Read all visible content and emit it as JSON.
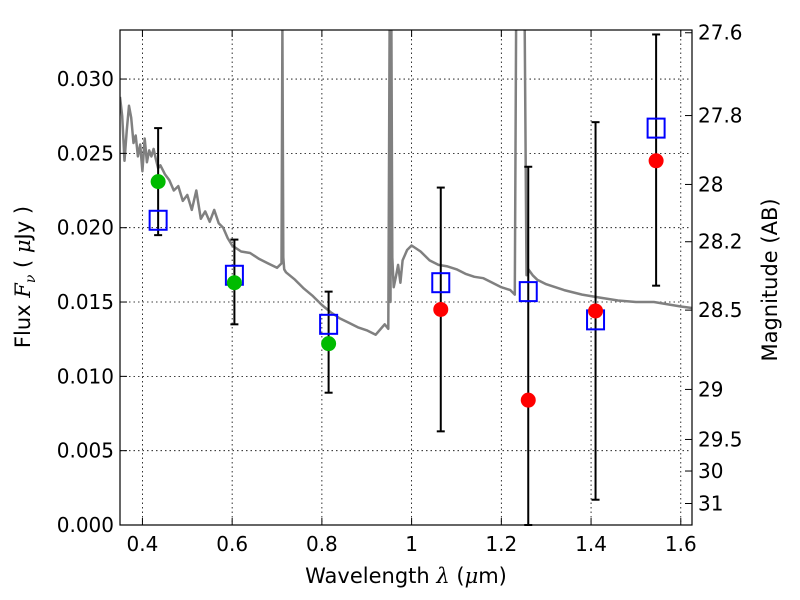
{
  "chart_data": {
    "type": "scatter",
    "title": "",
    "xlabel": {
      "prefix": "Wavelength  ",
      "symbol": "λ",
      "suffix": " (",
      "mu": "μ",
      "unit": "m)"
    },
    "ylabel": {
      "prefix": "Flux  ",
      "symbol": "F",
      "sub": "ν",
      "mid": "  ( ",
      "mu": "μ",
      "unit": "Jy )"
    },
    "ylabel_right": "Magnitude (AB)",
    "xlim": [
      0.35,
      1.625
    ],
    "ylim": [
      0.0,
      0.0333
    ],
    "grid": true,
    "x_ticks": [
      {
        "v": 0.4,
        "label": "0.4"
      },
      {
        "v": 0.6,
        "label": "0.6"
      },
      {
        "v": 0.8,
        "label": "0.8"
      },
      {
        "v": 1.0,
        "label": "1"
      },
      {
        "v": 1.2,
        "label": "1.2"
      },
      {
        "v": 1.4,
        "label": "1.4"
      },
      {
        "v": 1.6,
        "label": "1.6"
      }
    ],
    "y_ticks": [
      {
        "v": 0.0,
        "label": "0.000"
      },
      {
        "v": 0.005,
        "label": "0.005"
      },
      {
        "v": 0.01,
        "label": "0.010"
      },
      {
        "v": 0.015,
        "label": "0.015"
      },
      {
        "v": 0.02,
        "label": "0.020"
      },
      {
        "v": 0.025,
        "label": "0.025"
      },
      {
        "v": 0.03,
        "label": "0.030"
      }
    ],
    "right_ticks": [
      {
        "mag": 27.6,
        "label": "27.6"
      },
      {
        "mag": 27.8,
        "label": "27.8"
      },
      {
        "mag": 28.0,
        "label": "28"
      },
      {
        "mag": 28.2,
        "label": "28.2"
      },
      {
        "mag": 28.5,
        "label": "28.5"
      },
      {
        "mag": 29.0,
        "label": "29"
      },
      {
        "mag": 29.5,
        "label": "29.5"
      },
      {
        "mag": 30.0,
        "label": "30"
      },
      {
        "mag": 31.0,
        "label": "31"
      }
    ],
    "model_spectrum": {
      "color": "#808080",
      "x": [
        0.35,
        0.355,
        0.36,
        0.365,
        0.37,
        0.375,
        0.38,
        0.385,
        0.39,
        0.395,
        0.4,
        0.405,
        0.41,
        0.415,
        0.42,
        0.425,
        0.43,
        0.435,
        0.44,
        0.45,
        0.46,
        0.47,
        0.48,
        0.49,
        0.5,
        0.51,
        0.52,
        0.53,
        0.54,
        0.55,
        0.56,
        0.57,
        0.58,
        0.59,
        0.6,
        0.62,
        0.64,
        0.66,
        0.68,
        0.7,
        0.71,
        0.712,
        0.714,
        0.716,
        0.72,
        0.74,
        0.76,
        0.78,
        0.8,
        0.82,
        0.84,
        0.86,
        0.88,
        0.9,
        0.92,
        0.94,
        0.948,
        0.951,
        0.953,
        0.955,
        0.957,
        0.96,
        0.965,
        0.97,
        0.975,
        0.98,
        0.99,
        1.0,
        1.02,
        1.04,
        1.06,
        1.08,
        1.1,
        1.12,
        1.14,
        1.16,
        1.18,
        1.2,
        1.22,
        1.23,
        1.233,
        1.236,
        1.24,
        1.248,
        1.252,
        1.256,
        1.26,
        1.27,
        1.28,
        1.3,
        1.34,
        1.38,
        1.42,
        1.46,
        1.5,
        1.54,
        1.58,
        1.6,
        1.625
      ],
      "y": [
        0.0288,
        0.0275,
        0.0245,
        0.0265,
        0.0282,
        0.0274,
        0.0257,
        0.0262,
        0.0248,
        0.0256,
        0.0238,
        0.026,
        0.0244,
        0.0252,
        0.0248,
        0.0253,
        0.0246,
        0.024,
        0.0242,
        0.0236,
        0.0232,
        0.0225,
        0.0228,
        0.0218,
        0.0222,
        0.0212,
        0.0225,
        0.0206,
        0.0211,
        0.0204,
        0.0212,
        0.0203,
        0.02,
        0.0193,
        0.0188,
        0.0184,
        0.0183,
        0.0179,
        0.0176,
        0.0173,
        0.0176,
        0.0335,
        0.018,
        0.0172,
        0.017,
        0.0165,
        0.0159,
        0.0154,
        0.0148,
        0.0143,
        0.0139,
        0.0136,
        0.0133,
        0.0131,
        0.0128,
        0.0135,
        0.0132,
        0.0335,
        0.015,
        0.0335,
        0.018,
        0.016,
        0.0167,
        0.0175,
        0.0163,
        0.0178,
        0.0185,
        0.0188,
        0.0184,
        0.0178,
        0.0175,
        0.0174,
        0.0172,
        0.0169,
        0.0167,
        0.0166,
        0.0163,
        0.016,
        0.0158,
        0.0155,
        0.0335,
        0.0335,
        0.0335,
        0.0335,
        0.0335,
        0.0168,
        0.0172,
        0.0168,
        0.0165,
        0.0162,
        0.0158,
        0.0155,
        0.0153,
        0.0151,
        0.015,
        0.015,
        0.0148,
        0.0147,
        0.0146
      ]
    },
    "series": [
      {
        "marker": "square",
        "color": "#0000ff",
        "points": [
          {
            "x": 0.435,
            "y": 0.0205
          },
          {
            "x": 0.605,
            "y": 0.0168
          },
          {
            "x": 0.815,
            "y": 0.0135
          },
          {
            "x": 1.065,
            "y": 0.0163
          },
          {
            "x": 1.26,
            "y": 0.0157
          },
          {
            "x": 1.41,
            "y": 0.0138
          },
          {
            "x": 1.545,
            "y": 0.0267
          }
        ]
      },
      {
        "marker": "circle",
        "color": "#00bb00",
        "points": [
          {
            "x": 0.435,
            "y": 0.0231
          },
          {
            "x": 0.605,
            "y": 0.0163
          },
          {
            "x": 0.815,
            "y": 0.0122
          }
        ]
      },
      {
        "marker": "circle",
        "color": "#ff0000",
        "points": [
          {
            "x": 1.065,
            "y": 0.0145
          },
          {
            "x": 1.26,
            "y": 0.0084
          },
          {
            "x": 1.41,
            "y": 0.0144
          },
          {
            "x": 1.545,
            "y": 0.0245
          }
        ]
      }
    ],
    "error_bars": {
      "color": "#000000",
      "bars": [
        {
          "x": 0.435,
          "low": 0.0195,
          "high": 0.0267
        },
        {
          "x": 0.605,
          "low": 0.0135,
          "high": 0.0192
        },
        {
          "x": 0.815,
          "low": 0.0089,
          "high": 0.0157
        },
        {
          "x": 1.065,
          "low": 0.0063,
          "high": 0.0227
        },
        {
          "x": 1.26,
          "low": 0.0,
          "high": 0.0241
        },
        {
          "x": 1.41,
          "low": 0.0017,
          "high": 0.0271
        },
        {
          "x": 1.545,
          "low": 0.0161,
          "high": 0.033
        }
      ]
    }
  }
}
